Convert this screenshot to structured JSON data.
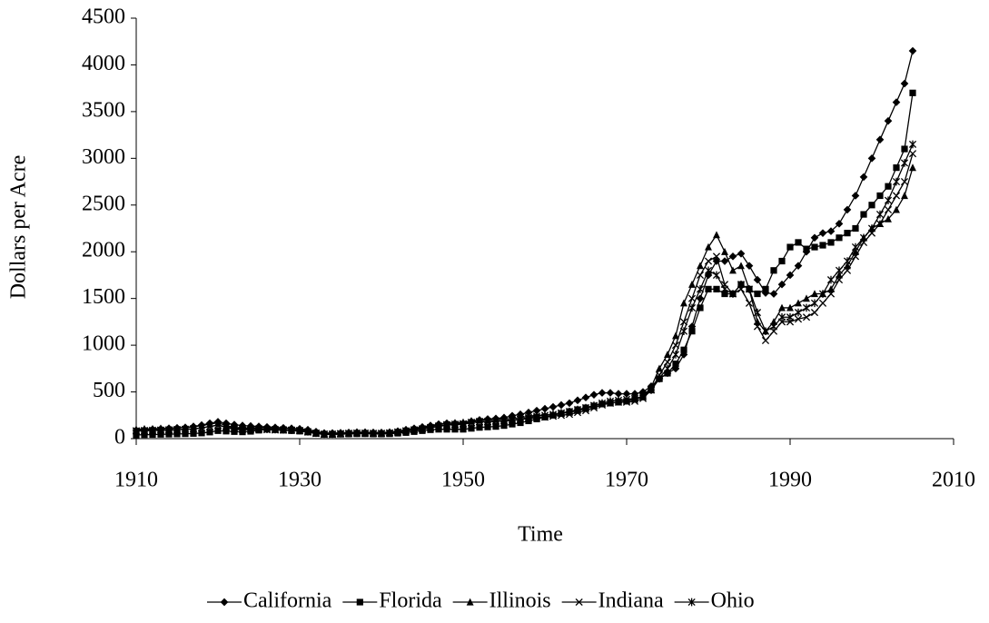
{
  "chart_data": {
    "type": "line",
    "x_label": "Time",
    "y_label": "Dollars per Acre",
    "xlim": [
      1910,
      2010
    ],
    "xticks": [
      1910,
      1930,
      1950,
      1970,
      1990,
      2010
    ],
    "ylim": [
      0,
      4500
    ],
    "yticks": [
      0,
      500,
      1000,
      1500,
      2000,
      2500,
      3000,
      3500,
      4000,
      4500
    ],
    "grid": false,
    "legend": "bottom",
    "x": [
      1910,
      1911,
      1912,
      1913,
      1914,
      1915,
      1916,
      1917,
      1918,
      1919,
      1920,
      1921,
      1922,
      1923,
      1924,
      1925,
      1926,
      1927,
      1928,
      1929,
      1930,
      1931,
      1932,
      1933,
      1934,
      1935,
      1936,
      1937,
      1938,
      1939,
      1940,
      1941,
      1942,
      1943,
      1944,
      1945,
      1946,
      1947,
      1948,
      1949,
      1950,
      1951,
      1952,
      1953,
      1954,
      1955,
      1956,
      1957,
      1958,
      1959,
      1960,
      1961,
      1962,
      1963,
      1964,
      1965,
      1966,
      1967,
      1968,
      1969,
      1970,
      1971,
      1972,
      1973,
      1974,
      1975,
      1976,
      1977,
      1978,
      1979,
      1980,
      1981,
      1982,
      1983,
      1984,
      1985,
      1986,
      1987,
      1988,
      1989,
      1990,
      1991,
      1992,
      1993,
      1994,
      1995,
      1996,
      1997,
      1998,
      1999,
      2000,
      2001,
      2002,
      2003,
      2004,
      2005
    ],
    "series": [
      {
        "name": "California",
        "color": "#000000",
        "marker": "diamond",
        "values": [
          90,
          95,
          100,
          105,
          110,
          115,
          120,
          130,
          145,
          165,
          180,
          165,
          150,
          140,
          135,
          130,
          125,
          120,
          115,
          110,
          105,
          95,
          75,
          60,
          60,
          62,
          65,
          68,
          68,
          66,
          65,
          68,
          80,
          95,
          110,
          125,
          140,
          155,
          165,
          165,
          165,
          185,
          200,
          210,
          215,
          225,
          245,
          260,
          280,
          300,
          320,
          340,
          360,
          380,
          410,
          440,
          470,
          490,
          490,
          480,
          480,
          480,
          500,
          560,
          640,
          700,
          750,
          900,
          1200,
          1500,
          1750,
          1900,
          1900,
          1950,
          1980,
          1850,
          1700,
          1560,
          1550,
          1650,
          1750,
          1850,
          2000,
          2150,
          2200,
          2220,
          2300,
          2450,
          2600,
          2800,
          3000,
          3200,
          3400,
          3600,
          3800,
          4150
        ]
      },
      {
        "name": "Florida",
        "color": "#000000",
        "marker": "square",
        "values": [
          40,
          42,
          44,
          46,
          48,
          50,
          52,
          55,
          60,
          70,
          85,
          80,
          75,
          72,
          78,
          90,
          100,
          95,
          90,
          85,
          80,
          70,
          55,
          45,
          45,
          48,
          50,
          52,
          52,
          50,
          50,
          52,
          58,
          65,
          75,
          85,
          95,
          100,
          100,
          100,
          100,
          110,
          120,
          125,
          130,
          140,
          155,
          170,
          190,
          210,
          230,
          250,
          270,
          290,
          310,
          330,
          350,
          370,
          380,
          390,
          400,
          420,
          450,
          520,
          640,
          700,
          800,
          950,
          1150,
          1400,
          1600,
          1600,
          1550,
          1550,
          1650,
          1600,
          1550,
          1600,
          1800,
          1900,
          2050,
          2100,
          2030,
          2050,
          2070,
          2100,
          2150,
          2200,
          2250,
          2400,
          2500,
          2600,
          2700,
          2900,
          3100,
          3700
        ]
      },
      {
        "name": "Illinois",
        "color": "#000000",
        "marker": "triangle",
        "values": [
          100,
          105,
          105,
          110,
          110,
          115,
          120,
          125,
          140,
          155,
          170,
          140,
          120,
          115,
          115,
          120,
          115,
          110,
          110,
          110,
          100,
          85,
          65,
          55,
          55,
          60,
          65,
          70,
          68,
          65,
          65,
          70,
          80,
          95,
          105,
          115,
          130,
          150,
          165,
          170,
          175,
          190,
          200,
          200,
          205,
          210,
          215,
          225,
          240,
          250,
          250,
          260,
          270,
          280,
          300,
          320,
          350,
          380,
          400,
          410,
          410,
          420,
          450,
          550,
          750,
          900,
          1100,
          1450,
          1650,
          1850,
          2050,
          2180,
          2000,
          1800,
          1850,
          1600,
          1250,
          1150,
          1250,
          1400,
          1400,
          1450,
          1500,
          1550,
          1550,
          1600,
          1750,
          1850,
          2000,
          2150,
          2250,
          2300,
          2350,
          2450,
          2600,
          2900
        ]
      },
      {
        "name": "Indiana",
        "color": "#000000",
        "marker": "x",
        "values": [
          80,
          85,
          85,
          90,
          90,
          95,
          100,
          105,
          115,
          130,
          145,
          120,
          100,
          95,
          95,
          100,
          95,
          92,
          90,
          90,
          85,
          70,
          55,
          45,
          45,
          50,
          55,
          58,
          56,
          54,
          54,
          58,
          68,
          80,
          90,
          100,
          115,
          130,
          145,
          150,
          155,
          170,
          180,
          180,
          185,
          190,
          195,
          205,
          215,
          225,
          230,
          240,
          250,
          260,
          280,
          300,
          330,
          360,
          380,
          390,
          390,
          400,
          430,
          520,
          680,
          820,
          1000,
          1250,
          1500,
          1750,
          1900,
          1950,
          1650,
          1550,
          1600,
          1450,
          1200,
          1050,
          1150,
          1250,
          1250,
          1280,
          1300,
          1350,
          1450,
          1550,
          1700,
          1800,
          1950,
          2100,
          2200,
          2300,
          2450,
          2600,
          2750,
          3050
        ]
      },
      {
        "name": "Ohio",
        "color": "#000000",
        "marker": "asterisk",
        "values": [
          85,
          88,
          90,
          92,
          95,
          98,
          100,
          105,
          115,
          130,
          145,
          125,
          110,
          105,
          105,
          105,
          100,
          98,
          95,
          92,
          88,
          75,
          60,
          50,
          50,
          55,
          58,
          60,
          60,
          58,
          58,
          62,
          72,
          85,
          95,
          105,
          120,
          135,
          150,
          155,
          160,
          175,
          185,
          185,
          190,
          195,
          200,
          210,
          225,
          240,
          250,
          260,
          275,
          290,
          310,
          330,
          355,
          380,
          400,
          410,
          420,
          430,
          450,
          520,
          650,
          750,
          900,
          1150,
          1400,
          1600,
          1800,
          1750,
          1600,
          1550,
          1650,
          1600,
          1350,
          1150,
          1200,
          1300,
          1300,
          1350,
          1400,
          1450,
          1550,
          1700,
          1800,
          1900,
          2050,
          2150,
          2250,
          2400,
          2550,
          2750,
          2950,
          3150
        ]
      }
    ]
  }
}
